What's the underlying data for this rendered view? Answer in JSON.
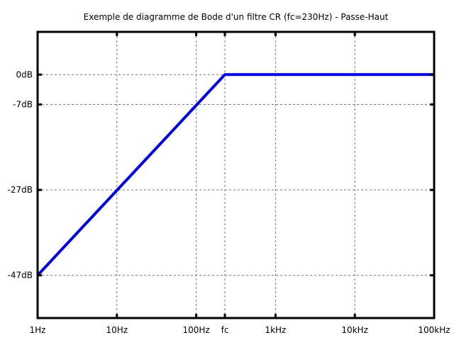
{
  "chart_data": {
    "type": "line",
    "title": "Exemple de diagramme de Bode d'un filtre CR (fc=230Hz) - Passe-Haut",
    "xlabel": "",
    "ylabel": "",
    "x_scale": "log",
    "xlim": [
      1,
      100000
    ],
    "ylim": [
      -57,
      10
    ],
    "grid": true,
    "x_ticks": [
      {
        "value": 1,
        "label": "1Hz"
      },
      {
        "value": 10,
        "label": "10Hz"
      },
      {
        "value": 100,
        "label": "100Hz"
      },
      {
        "value": 230,
        "label": "fc"
      },
      {
        "value": 1000,
        "label": "1kHz"
      },
      {
        "value": 10000,
        "label": "10kHz"
      },
      {
        "value": 100000,
        "label": "100kHz"
      }
    ],
    "y_ticks": [
      {
        "value": 0,
        "label": "0dB"
      },
      {
        "value": -7,
        "label": "-7dB"
      },
      {
        "value": -27,
        "label": "-27dB"
      },
      {
        "value": -47,
        "label": "-47dB"
      }
    ],
    "series": [
      {
        "name": "",
        "color": "#0000dd",
        "x": [
          1,
          230,
          100000
        ],
        "y": [
          -47,
          0,
          0
        ]
      }
    ]
  }
}
